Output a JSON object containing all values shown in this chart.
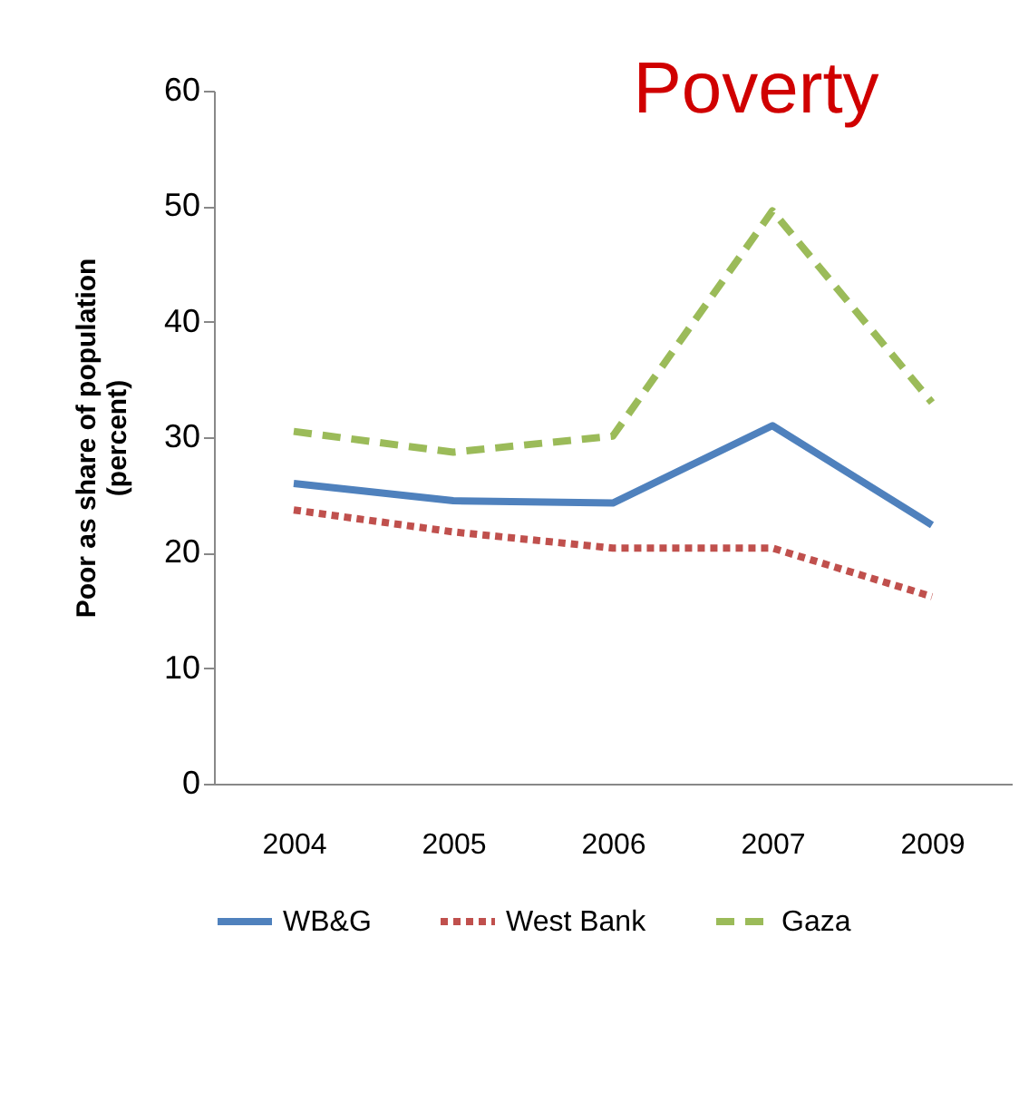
{
  "chart_data": {
    "type": "line",
    "title": "Poverty",
    "ylabel": "Poor as share of population (percent)",
    "categories": [
      "2004",
      "2005",
      "2006",
      "2007",
      "2009"
    ],
    "series": [
      {
        "name": "WB&G",
        "color": "#4f81bd",
        "line_style": "solid",
        "values": [
          26,
          24.5,
          24.3,
          31,
          22.4
        ]
      },
      {
        "name": "West Bank",
        "color": "#c0504d",
        "line_style": "dotted",
        "values": [
          23.7,
          21.8,
          20.4,
          20.4,
          16.2
        ]
      },
      {
        "name": "Gaza",
        "color": "#9bbb59",
        "line_style": "dashed",
        "values": [
          30.5,
          28.7,
          30.1,
          49.6,
          33
        ]
      }
    ],
    "ylim": [
      0,
      60
    ],
    "yticks": [
      0,
      10,
      20,
      30,
      40,
      50,
      60
    ],
    "grid": false,
    "legend": "bottom",
    "marker": "none"
  }
}
